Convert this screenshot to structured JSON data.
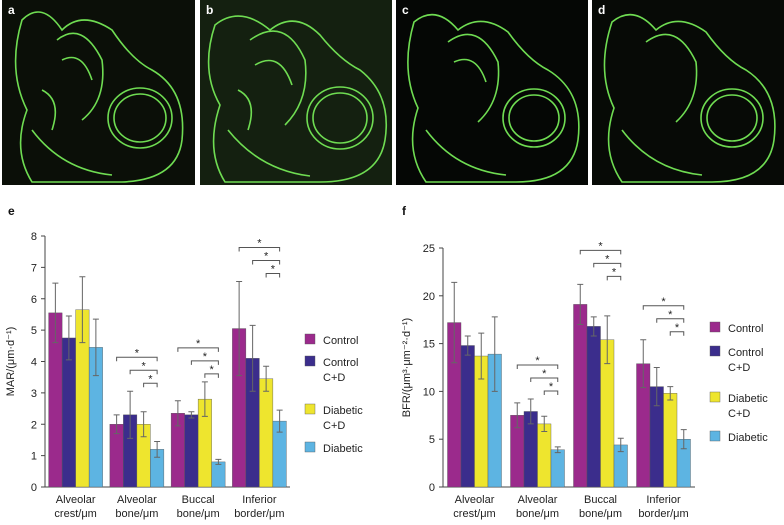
{
  "panels": [
    "a",
    "b",
    "c",
    "d"
  ],
  "chart_data": [
    {
      "type": "bar",
      "panel": "e",
      "y_label": "MAR/(μm·d⁻¹)",
      "categories": [
        "Alveolar crest/μm",
        "Alveolar bone/μm",
        "Buccal bone/μm",
        "Inferior border/μm"
      ],
      "series": [
        {
          "name": "Control",
          "color": "#9b2a8c",
          "values": [
            5.55,
            2.0,
            2.35,
            5.05
          ],
          "errors": [
            0.95,
            0.3,
            0.4,
            1.5
          ]
        },
        {
          "name": "Control C+D",
          "color": "#3b2d8c",
          "values": [
            4.75,
            2.3,
            2.3,
            4.1
          ],
          "errors": [
            0.7,
            0.75,
            0.1,
            1.05
          ]
        },
        {
          "name": "Diabetic C+D",
          "color": "#eee52e",
          "values": [
            5.65,
            2.0,
            2.8,
            3.45
          ],
          "errors": [
            1.05,
            0.4,
            0.55,
            0.4
          ]
        },
        {
          "name": "Diabetic",
          "color": "#5db4e2",
          "values": [
            4.45,
            1.2,
            0.8,
            2.1
          ],
          "errors": [
            0.9,
            0.25,
            0.08,
            0.35
          ]
        }
      ],
      "ylim": [
        0,
        8
      ],
      "yticks": [
        0,
        1,
        2,
        3,
        4,
        5,
        6,
        7,
        8
      ],
      "annotations": [
        "*",
        "*",
        "*",
        "*",
        "*",
        "*",
        "*",
        "*",
        "*"
      ]
    },
    {
      "type": "bar",
      "panel": "f",
      "y_label": "BFR/(μm³·μm⁻²·d⁻¹)",
      "categories": [
        "Alveolar crest/μm",
        "Alveolar bone/μm",
        "Buccal bone/μm",
        "Inferior border/μm"
      ],
      "series": [
        {
          "name": "Control",
          "color": "#9b2a8c",
          "values": [
            17.2,
            7.5,
            19.1,
            12.9
          ],
          "errors": [
            4.2,
            1.3,
            2.1,
            2.5
          ]
        },
        {
          "name": "Control C+D",
          "color": "#3b2d8c",
          "values": [
            14.8,
            7.9,
            16.8,
            10.5
          ],
          "errors": [
            1.0,
            1.3,
            1.0,
            2.0
          ]
        },
        {
          "name": "Diabetic C+D",
          "color": "#eee52e",
          "values": [
            13.7,
            6.6,
            15.4,
            9.8
          ],
          "errors": [
            2.4,
            0.8,
            2.5,
            0.7
          ]
        },
        {
          "name": "Diabetic",
          "color": "#5db4e2",
          "values": [
            13.9,
            3.9,
            4.4,
            5.0
          ],
          "errors": [
            3.9,
            0.3,
            0.7,
            1.0
          ]
        }
      ],
      "ylim": [
        0,
        25
      ],
      "yticks": [
        0,
        5,
        10,
        15,
        20,
        25
      ],
      "annotations": [
        "*",
        "*",
        "*",
        "*",
        "*",
        "*",
        "*",
        "*",
        "*"
      ]
    }
  ]
}
